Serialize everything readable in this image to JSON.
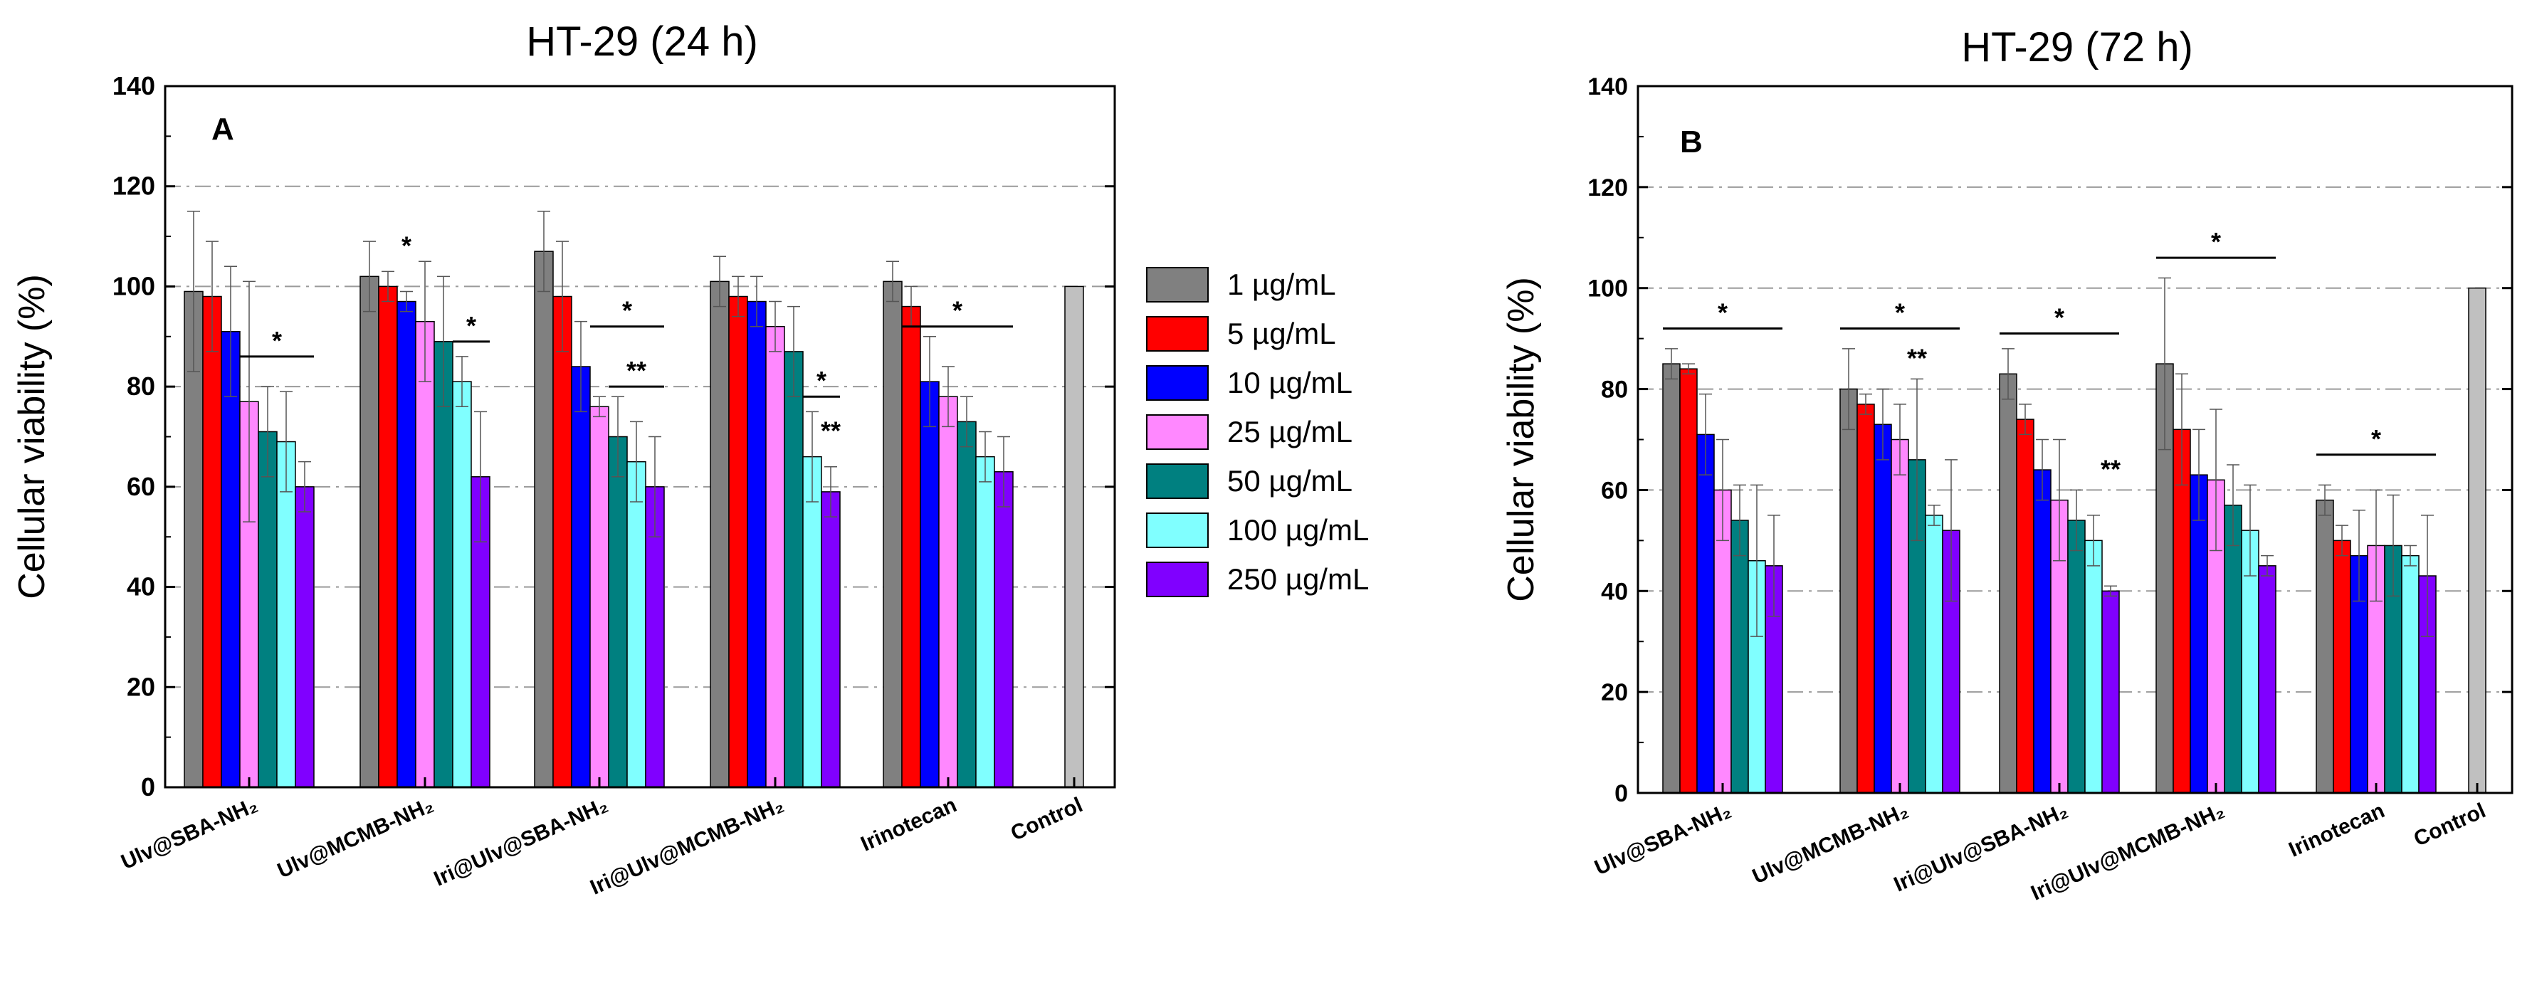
{
  "legend": {
    "items": [
      {
        "label": "1 µg/mL",
        "color": "#808080"
      },
      {
        "label": "5 µg/mL",
        "color": "#ff0000"
      },
      {
        "label": "10 µg/mL",
        "color": "#0000ff"
      },
      {
        "label": "25 µg/mL",
        "color": "#ff88ff"
      },
      {
        "label": "50 µg/mL",
        "color": "#008080"
      },
      {
        "label": "100 µg/mL",
        "color": "#80ffff"
      },
      {
        "label": "250 µg/mL",
        "color": "#8000ff"
      }
    ]
  },
  "chart_data": [
    {
      "type": "bar",
      "panel": "A",
      "title": "HT-29 (24 h)",
      "ylabel": "Cellular viability (%)",
      "xlabel": "",
      "ylim": [
        0,
        140
      ],
      "yticks": [
        0,
        20,
        40,
        60,
        80,
        100,
        120,
        140
      ],
      "grid": "horizontal dash-dot",
      "categories": [
        "Ulv@SBA-NH₂",
        "Ulv@MCMB-NH₂",
        "Iri@Ulv@SBA-NH₂",
        "Iri@Ulv@MCMB-NH₂",
        "Irinotecan",
        "Control"
      ],
      "series": [
        {
          "name": "1 µg/mL",
          "values": [
            99,
            102,
            107,
            101,
            101,
            null
          ],
          "errors": [
            16,
            7,
            8,
            5,
            4,
            null
          ]
        },
        {
          "name": "5 µg/mL",
          "values": [
            98,
            100,
            98,
            98,
            96,
            null
          ],
          "errors": [
            11,
            3,
            11,
            4,
            4,
            null
          ]
        },
        {
          "name": "10 µg/mL",
          "values": [
            91,
            97,
            84,
            97,
            81,
            null
          ],
          "errors": [
            13,
            2,
            9,
            5,
            9,
            null
          ]
        },
        {
          "name": "25 µg/mL",
          "values": [
            77,
            93,
            76,
            92,
            78,
            null
          ],
          "errors": [
            24,
            12,
            2,
            5,
            6,
            null
          ]
        },
        {
          "name": "50 µg/mL",
          "values": [
            71,
            89,
            70,
            87,
            73,
            null
          ],
          "errors": [
            9,
            13,
            8,
            9,
            5,
            null
          ]
        },
        {
          "name": "100 µg/mL",
          "values": [
            69,
            81,
            65,
            66,
            66,
            null
          ],
          "errors": [
            10,
            5,
            8,
            9,
            5,
            null
          ]
        },
        {
          "name": "250 µg/mL",
          "values": [
            60,
            62,
            60,
            59,
            63,
            null
          ],
          "errors": [
            5,
            13,
            10,
            5,
            7,
            null
          ]
        },
        {
          "name": "Control",
          "values": [
            null,
            null,
            null,
            null,
            null,
            100
          ],
          "errors": [
            null,
            null,
            null,
            null,
            null,
            0
          ]
        }
      ],
      "annotations": [
        {
          "text": "*",
          "group": 0,
          "from_series": 3,
          "to_series": 6,
          "y": 86
        },
        {
          "text": "*",
          "group": 1,
          "from_series": 2,
          "to_series": 2,
          "y": 105
        },
        {
          "text": "*",
          "group": 1,
          "from_series": 5,
          "to_series": 6,
          "y": 89
        },
        {
          "text": "*",
          "group": 2,
          "from_series": 3,
          "to_series": 6,
          "y": 92
        },
        {
          "text": "**",
          "group": 2,
          "from_series": 4,
          "to_series": 6,
          "y": 80
        },
        {
          "text": "*",
          "group": 3,
          "from_series": 5,
          "to_series": 6,
          "y": 78
        },
        {
          "text": "**",
          "group": 3,
          "from_series": 6,
          "to_series": 6,
          "y": 68
        },
        {
          "text": "*",
          "group": 4,
          "from_series": 1,
          "to_series": 6,
          "y": 92
        }
      ]
    },
    {
      "type": "bar",
      "panel": "B",
      "title": "HT-29 (72 h)",
      "ylabel": "Cellular viability (%)",
      "xlabel": "",
      "ylim": [
        0,
        140
      ],
      "yticks": [
        0,
        20,
        40,
        60,
        80,
        100,
        120,
        140
      ],
      "grid": "horizontal dash-dot",
      "categories": [
        "Ulv@SBA-NH₂",
        "Ulv@MCMB-NH₂",
        "Iri@Ulv@SBA-NH₂",
        "Iri@Ulv@MCMB-NH₂",
        "Irinotecan",
        "Control"
      ],
      "series": [
        {
          "name": "1 µg/mL",
          "values": [
            85,
            80,
            83,
            85,
            58,
            null
          ],
          "errors": [
            3,
            8,
            5,
            17,
            3,
            null
          ]
        },
        {
          "name": "5 µg/mL",
          "values": [
            84,
            77,
            74,
            72,
            50,
            null
          ],
          "errors": [
            1,
            2,
            3,
            11,
            3,
            null
          ]
        },
        {
          "name": "10 µg/mL",
          "values": [
            71,
            73,
            64,
            63,
            47,
            null
          ],
          "errors": [
            8,
            7,
            6,
            9,
            9,
            null
          ]
        },
        {
          "name": "25 µg/mL",
          "values": [
            60,
            70,
            58,
            62,
            49,
            null
          ],
          "errors": [
            10,
            7,
            12,
            14,
            11,
            null
          ]
        },
        {
          "name": "50 µg/mL",
          "values": [
            54,
            66,
            54,
            57,
            49,
            null
          ],
          "errors": [
            7,
            16,
            6,
            8,
            10,
            null
          ]
        },
        {
          "name": "100 µg/mL",
          "values": [
            46,
            55,
            50,
            52,
            47,
            null
          ],
          "errors": [
            15,
            2,
            5,
            9,
            2,
            null
          ]
        },
        {
          "name": "250 µg/mL",
          "values": [
            45,
            52,
            40,
            45,
            43,
            null
          ],
          "errors": [
            10,
            14,
            1,
            2,
            12,
            null
          ]
        },
        {
          "name": "Control",
          "values": [
            null,
            null,
            null,
            null,
            null,
            100
          ],
          "errors": [
            null,
            null,
            null,
            null,
            null,
            0
          ]
        }
      ],
      "annotations": [
        {
          "text": "*",
          "group": 0,
          "from_series": 0,
          "to_series": 6,
          "y": 92
        },
        {
          "text": "*",
          "group": 1,
          "from_series": 0,
          "to_series": 6,
          "y": 92
        },
        {
          "text": "**",
          "group": 1,
          "from_series": 4,
          "to_series": 4,
          "y": 83
        },
        {
          "text": "*",
          "group": 2,
          "from_series": 0,
          "to_series": 6,
          "y": 91
        },
        {
          "text": "**",
          "group": 2,
          "from_series": 6,
          "to_series": 6,
          "y": 61
        },
        {
          "text": "*",
          "group": 3,
          "from_series": 0,
          "to_series": 6,
          "y": 106
        },
        {
          "text": "*",
          "group": 4,
          "from_series": 0,
          "to_series": 6,
          "y": 67
        }
      ]
    }
  ]
}
